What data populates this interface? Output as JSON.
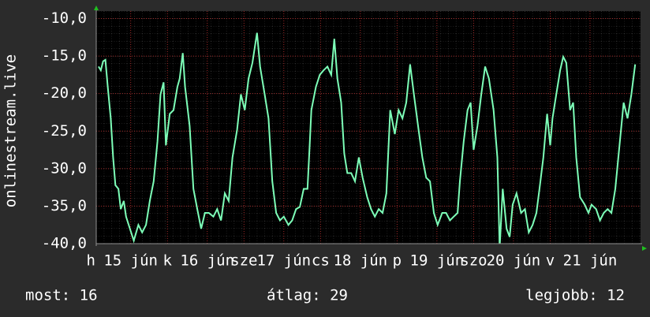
{
  "chart_data": {
    "type": "line",
    "y_label": "onlinestream.live",
    "xlim": [
      0,
      7.11
    ],
    "ylim": [
      -40,
      -9
    ],
    "yticks": [
      {
        "value": -10,
        "label": "-10,0"
      },
      {
        "value": -15,
        "label": "-15,0"
      },
      {
        "value": -20,
        "label": "-20,0"
      },
      {
        "value": -25,
        "label": "-25,0"
      },
      {
        "value": -30,
        "label": "-30,0"
      },
      {
        "value": -35,
        "label": "-35,0"
      },
      {
        "value": -40,
        "label": "-40,0"
      }
    ],
    "xticks": [
      {
        "value": -0.07,
        "label": "h"
      },
      {
        "value": 0.45,
        "label": "15 jún"
      },
      {
        "value": 0.93,
        "label": "k"
      },
      {
        "value": 1.45,
        "label": "16 jún"
      },
      {
        "value": 1.93,
        "label": "sze"
      },
      {
        "value": 2.45,
        "label": "17 jún"
      },
      {
        "value": 2.93,
        "label": "cs"
      },
      {
        "value": 3.45,
        "label": "18 jún"
      },
      {
        "value": 3.93,
        "label": "p"
      },
      {
        "value": 4.45,
        "label": "19 jún"
      },
      {
        "value": 4.93,
        "label": "szo"
      },
      {
        "value": 5.45,
        "label": "20 jún"
      },
      {
        "value": 5.93,
        "label": "v"
      },
      {
        "value": 6.45,
        "label": "21 jún"
      }
    ],
    "grid": true,
    "series": [
      {
        "name": "onlinestream.live",
        "color": "#7dffb8",
        "x": [
          0.03,
          0.06,
          0.09,
          0.12,
          0.15,
          0.19,
          0.22,
          0.25,
          0.29,
          0.32,
          0.36,
          0.39,
          0.44,
          0.49,
          0.55,
          0.6,
          0.65,
          0.7,
          0.75,
          0.8,
          0.84,
          0.88,
          0.91,
          0.96,
          1.01,
          1.06,
          1.09,
          1.13,
          1.16,
          1.22,
          1.27,
          1.32,
          1.37,
          1.42,
          1.47,
          1.53,
          1.58,
          1.63,
          1.68,
          1.73,
          1.78,
          1.84,
          1.89,
          1.94,
          1.99,
          2.04,
          2.1,
          2.14,
          2.2,
          2.25,
          2.3,
          2.35,
          2.4,
          2.45,
          2.51,
          2.56,
          2.61,
          2.66,
          2.71,
          2.76,
          2.79,
          2.81,
          2.87,
          2.92,
          2.97,
          3.02,
          3.07,
          3.11,
          3.15,
          3.2,
          3.24,
          3.28,
          3.33,
          3.38,
          3.43,
          3.48,
          3.54,
          3.59,
          3.64,
          3.69,
          3.74,
          3.79,
          3.84,
          3.9,
          3.95,
          4.0,
          4.05,
          4.1,
          4.15,
          4.21,
          4.26,
          4.31,
          4.36,
          4.41,
          4.46,
          4.52,
          4.57,
          4.62,
          4.67,
          4.72,
          4.75,
          4.8,
          4.85,
          4.89,
          4.93,
          4.98,
          5.03,
          5.08,
          5.13,
          5.19,
          5.24,
          5.27,
          5.31,
          5.36,
          5.4,
          5.44,
          5.49,
          5.55,
          5.6,
          5.65,
          5.7,
          5.75,
          5.79,
          5.84,
          5.89,
          5.93,
          5.96,
          6.01,
          6.06,
          6.1,
          6.14,
          6.19,
          6.23,
          6.27,
          6.32,
          6.38,
          6.43,
          6.47,
          6.53,
          6.58,
          6.63,
          6.68,
          6.73,
          6.78,
          6.84,
          6.89,
          6.94,
          6.99,
          7.04
        ],
        "values": [
          -16.4,
          -16.9,
          -15.7,
          -15.5,
          -19.1,
          -23.3,
          -28.5,
          -32.2,
          -32.7,
          -35.4,
          -34.3,
          -36.4,
          -38.0,
          -39.6,
          -37.5,
          -38.5,
          -37.5,
          -34.3,
          -31.7,
          -26.4,
          -20.1,
          -18.5,
          -26.9,
          -22.7,
          -22.2,
          -19.1,
          -18.0,
          -14.6,
          -19.1,
          -24.3,
          -32.7,
          -35.4,
          -38.0,
          -35.9,
          -35.9,
          -36.4,
          -35.4,
          -36.9,
          -33.3,
          -34.3,
          -28.5,
          -24.8,
          -20.1,
          -22.2,
          -18.0,
          -15.9,
          -11.9,
          -16.4,
          -20.1,
          -23.3,
          -31.7,
          -35.9,
          -36.9,
          -36.4,
          -37.5,
          -36.9,
          -35.4,
          -35.1,
          -32.7,
          -32.7,
          -26.4,
          -22.2,
          -19.1,
          -17.5,
          -16.9,
          -16.4,
          -17.5,
          -12.7,
          -18.0,
          -21.2,
          -28.0,
          -30.6,
          -30.6,
          -31.7,
          -28.5,
          -31.2,
          -33.8,
          -35.4,
          -36.4,
          -35.4,
          -35.9,
          -33.3,
          -22.2,
          -25.4,
          -22.2,
          -23.3,
          -21.2,
          -16.1,
          -20.1,
          -24.8,
          -28.5,
          -31.2,
          -31.7,
          -35.9,
          -37.5,
          -35.9,
          -35.9,
          -36.9,
          -36.4,
          -35.9,
          -31.7,
          -26.4,
          -22.2,
          -21.2,
          -27.5,
          -24.3,
          -20.1,
          -16.4,
          -18.0,
          -22.2,
          -28.5,
          -40.6,
          -32.7,
          -38.0,
          -39.1,
          -34.8,
          -33.3,
          -35.9,
          -35.4,
          -38.5,
          -37.5,
          -35.9,
          -32.7,
          -28.5,
          -22.7,
          -26.9,
          -23.3,
          -20.1,
          -16.9,
          -15.1,
          -15.9,
          -22.2,
          -21.2,
          -28.5,
          -33.8,
          -34.8,
          -35.9,
          -34.8,
          -35.4,
          -36.9,
          -35.9,
          -35.4,
          -35.9,
          -32.7,
          -26.4,
          -21.2,
          -23.3,
          -20.1,
          -16.1
        ]
      }
    ],
    "stats": [
      "most: 16",
      "átlag: 29",
      "legjobb: 12"
    ]
  }
}
